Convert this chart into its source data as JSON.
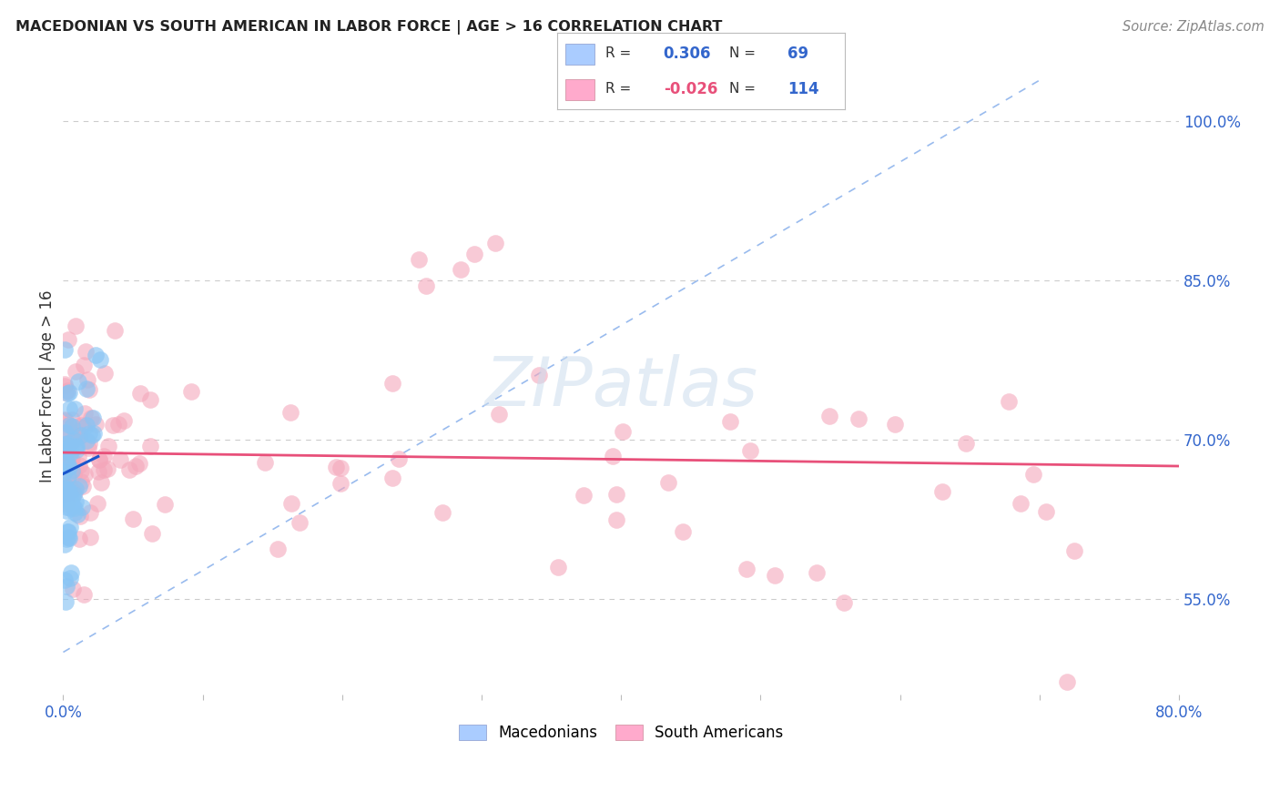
{
  "title": "MACEDONIAN VS SOUTH AMERICAN IN LABOR FORCE | AGE > 16 CORRELATION CHART",
  "source": "Source: ZipAtlas.com",
  "ylabel": "In Labor Force | Age > 16",
  "x_min": 0.0,
  "x_max": 0.8,
  "y_min": 0.46,
  "y_max": 1.04,
  "y_ticks_right": [
    0.55,
    0.7,
    0.85,
    1.0
  ],
  "y_tick_labels_right": [
    "55.0%",
    "70.0%",
    "85.0%",
    "100.0%"
  ],
  "legend_blue_r": "0.306",
  "legend_blue_n": "69",
  "legend_pink_r": "-0.026",
  "legend_pink_n": "114",
  "blue_color": "#89c4f4",
  "pink_color": "#f4a7bb",
  "blue_line_color": "#1a56cc",
  "pink_line_color": "#e8507a",
  "diagonal_color": "#99bbee",
  "background_color": "#ffffff",
  "grid_color": "#cccccc",
  "watermark": "ZIPatlas",
  "title_color": "#222222",
  "source_color": "#888888",
  "axis_label_color": "#333333",
  "tick_color": "#3366cc"
}
